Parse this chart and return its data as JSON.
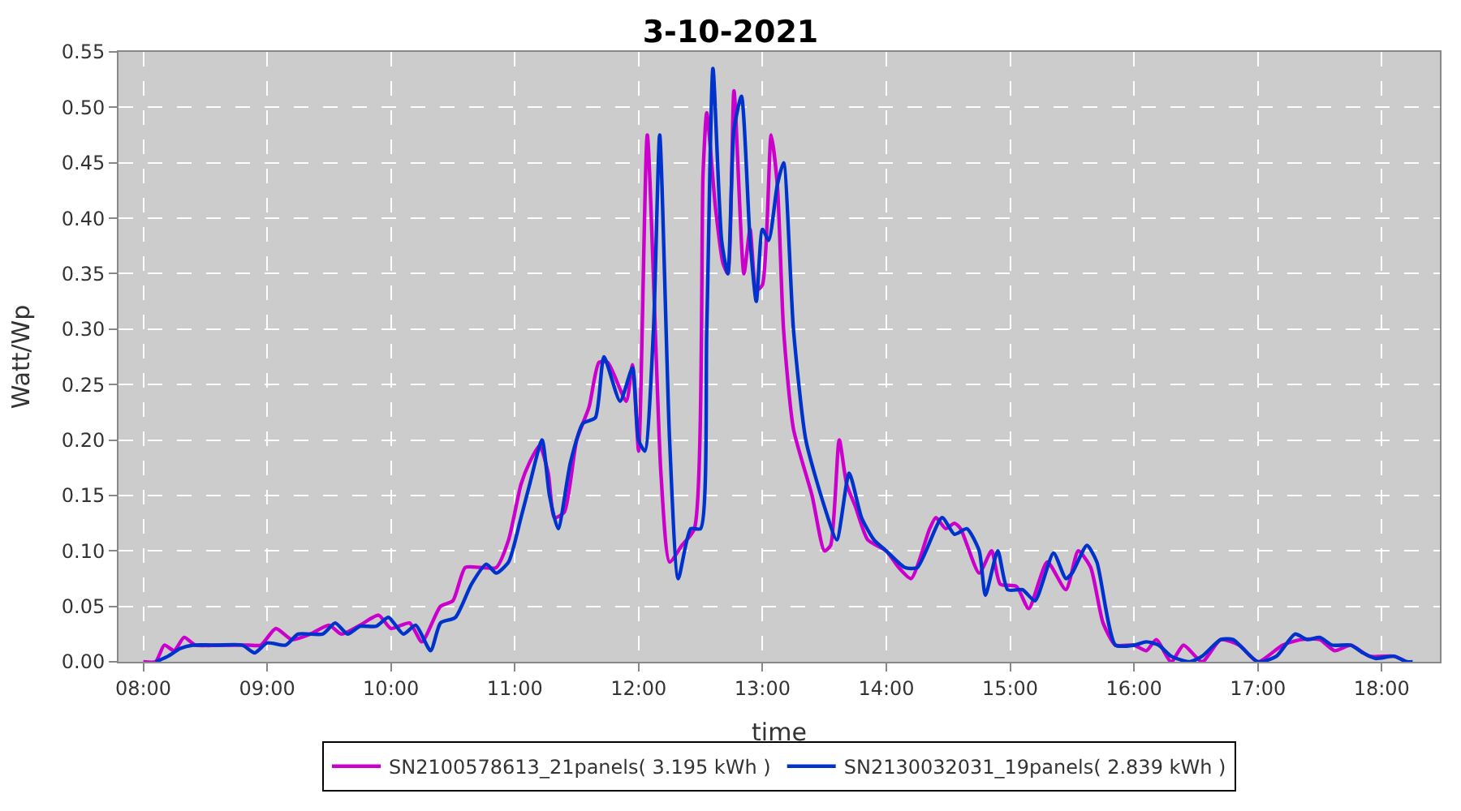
{
  "chart_data": {
    "type": "line",
    "title": "3-10-2021",
    "xlabel": "time",
    "ylabel": "Watt/Wp",
    "xlim": [
      7.8,
      18.47
    ],
    "ylim": [
      0,
      0.55
    ],
    "xticks": [
      {
        "value": 8,
        "label": "08:00"
      },
      {
        "value": 9,
        "label": "09:00"
      },
      {
        "value": 10,
        "label": "10:00"
      },
      {
        "value": 11,
        "label": "11:00"
      },
      {
        "value": 12,
        "label": "12:00"
      },
      {
        "value": 13,
        "label": "13:00"
      },
      {
        "value": 14,
        "label": "14:00"
      },
      {
        "value": 15,
        "label": "15:00"
      },
      {
        "value": 16,
        "label": "16:00"
      },
      {
        "value": 17,
        "label": "17:00"
      },
      {
        "value": 18,
        "label": "18:00"
      }
    ],
    "yticks": [
      {
        "value": 0,
        "label": "0.00"
      },
      {
        "value": 0.05,
        "label": "0.05"
      },
      {
        "value": 0.1,
        "label": "0.10"
      },
      {
        "value": 0.15,
        "label": "0.15"
      },
      {
        "value": 0.2,
        "label": "0.20"
      },
      {
        "value": 0.25,
        "label": "0.25"
      },
      {
        "value": 0.3,
        "label": "0.30"
      },
      {
        "value": 0.35,
        "label": "0.35"
      },
      {
        "value": 0.4,
        "label": "0.40"
      },
      {
        "value": 0.45,
        "label": "0.45"
      },
      {
        "value": 0.5,
        "label": "0.50"
      },
      {
        "value": 0.55,
        "label": "0.55"
      }
    ],
    "grid": true,
    "legend": "bottom",
    "marker": "none",
    "line_style": "solid",
    "series": [
      {
        "name": "SN2100578613_21panels( 3.195 kWh )",
        "color": "#cc00cc",
        "x": [
          8.0,
          8.1,
          8.17,
          8.25,
          8.33,
          8.42,
          8.6,
          8.85,
          8.95,
          9.07,
          9.2,
          9.35,
          9.5,
          9.6,
          9.75,
          9.9,
          10.0,
          10.15,
          10.25,
          10.4,
          10.5,
          10.6,
          10.72,
          10.85,
          10.95,
          11.05,
          11.12,
          11.2,
          11.27,
          11.32,
          11.4,
          11.5,
          11.6,
          11.68,
          11.75,
          11.9,
          11.95,
          12.0,
          12.07,
          12.18,
          12.25,
          12.35,
          12.45,
          12.52,
          12.55,
          12.62,
          12.68,
          12.72,
          12.77,
          12.85,
          12.9,
          12.95,
          13.0,
          13.07,
          13.12,
          13.17,
          13.25,
          13.4,
          13.5,
          13.55,
          13.62,
          13.68,
          13.75,
          13.85,
          14.0,
          14.1,
          14.2,
          14.35,
          14.4,
          14.48,
          14.55,
          14.6,
          14.75,
          14.85,
          14.92,
          15.05,
          15.15,
          15.3,
          15.45,
          15.55,
          15.65,
          15.75,
          15.85,
          16.0,
          16.1,
          16.18,
          16.3,
          16.4,
          16.55,
          16.7,
          16.85,
          17.0,
          17.2,
          17.35,
          17.5,
          17.62,
          17.75,
          17.9,
          18.1,
          18.2
        ],
        "values": [
          0.0,
          0.0,
          0.015,
          0.01,
          0.022,
          0.015,
          0.015,
          0.015,
          0.015,
          0.03,
          0.02,
          0.025,
          0.033,
          0.025,
          0.033,
          0.042,
          0.03,
          0.035,
          0.018,
          0.05,
          0.055,
          0.085,
          0.085,
          0.085,
          0.11,
          0.16,
          0.18,
          0.195,
          0.17,
          0.13,
          0.135,
          0.2,
          0.23,
          0.27,
          0.27,
          0.235,
          0.268,
          0.19,
          0.475,
          0.17,
          0.09,
          0.105,
          0.12,
          0.44,
          0.495,
          0.41,
          0.36,
          0.35,
          0.515,
          0.35,
          0.39,
          0.335,
          0.34,
          0.475,
          0.43,
          0.3,
          0.21,
          0.15,
          0.1,
          0.105,
          0.2,
          0.16,
          0.14,
          0.11,
          0.1,
          0.085,
          0.075,
          0.12,
          0.13,
          0.12,
          0.125,
          0.12,
          0.08,
          0.1,
          0.07,
          0.068,
          0.048,
          0.09,
          0.065,
          0.1,
          0.085,
          0.035,
          0.015,
          0.015,
          0.01,
          0.02,
          0.0,
          0.015,
          0.0,
          0.02,
          0.015,
          0.0,
          0.015,
          0.02,
          0.02,
          0.01,
          0.015,
          0.005,
          0.005,
          0.0
        ]
      },
      {
        "name": "SN2130032031_19panels( 2.839 kWh )",
        "color": "#0033cc",
        "x": [
          8.1,
          8.2,
          8.3,
          8.4,
          8.6,
          8.8,
          8.9,
          9.0,
          9.15,
          9.25,
          9.45,
          9.55,
          9.65,
          9.75,
          9.88,
          9.98,
          10.1,
          10.2,
          10.32,
          10.4,
          10.52,
          10.65,
          10.77,
          10.85,
          10.95,
          11.05,
          11.12,
          11.22,
          11.28,
          11.35,
          11.45,
          11.55,
          11.65,
          11.72,
          11.85,
          11.95,
          12.0,
          12.05,
          12.12,
          12.17,
          12.25,
          12.32,
          12.42,
          12.5,
          12.55,
          12.6,
          12.67,
          12.72,
          12.77,
          12.83,
          12.9,
          12.95,
          13.0,
          13.05,
          13.12,
          13.17,
          13.25,
          13.35,
          13.5,
          13.6,
          13.7,
          13.8,
          13.9,
          14.0,
          14.15,
          14.25,
          14.45,
          14.55,
          14.65,
          14.75,
          14.8,
          14.9,
          14.98,
          15.1,
          15.2,
          15.35,
          15.45,
          15.5,
          15.62,
          15.7,
          15.85,
          16.0,
          16.1,
          16.2,
          16.3,
          16.45,
          16.55,
          16.7,
          16.8,
          17.0,
          17.15,
          17.3,
          17.4,
          17.5,
          17.6,
          17.75,
          17.85,
          17.95,
          18.1,
          18.2,
          18.25
        ],
        "values": [
          0.0,
          0.005,
          0.012,
          0.015,
          0.015,
          0.015,
          0.008,
          0.017,
          0.015,
          0.025,
          0.025,
          0.035,
          0.025,
          0.032,
          0.032,
          0.04,
          0.025,
          0.033,
          0.01,
          0.035,
          0.04,
          0.07,
          0.088,
          0.08,
          0.09,
          0.13,
          0.16,
          0.2,
          0.15,
          0.12,
          0.18,
          0.215,
          0.22,
          0.275,
          0.235,
          0.265,
          0.2,
          0.19,
          0.3,
          0.475,
          0.2,
          0.075,
          0.12,
          0.12,
          0.3,
          0.535,
          0.38,
          0.35,
          0.48,
          0.51,
          0.38,
          0.325,
          0.39,
          0.38,
          0.43,
          0.45,
          0.3,
          0.2,
          0.14,
          0.11,
          0.17,
          0.13,
          0.11,
          0.1,
          0.085,
          0.085,
          0.13,
          0.115,
          0.12,
          0.1,
          0.06,
          0.1,
          0.065,
          0.065,
          0.055,
          0.098,
          0.075,
          0.08,
          0.105,
          0.09,
          0.015,
          0.015,
          0.018,
          0.015,
          0.005,
          0.0,
          0.005,
          0.02,
          0.02,
          0.0,
          0.005,
          0.025,
          0.02,
          0.022,
          0.015,
          0.015,
          0.008,
          0.003,
          0.005,
          0.0,
          0.0
        ]
      }
    ]
  }
}
